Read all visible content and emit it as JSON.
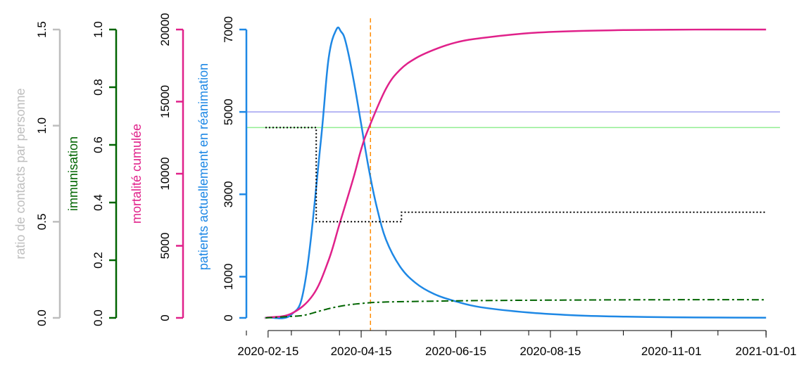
{
  "chart_data": {
    "type": "line",
    "x_axis": {
      "tick_labels": [
        "2020-02-15",
        "2020-04-15",
        "2020-06-15",
        "2020-08-15",
        "2020-11-01",
        "2021-01-01"
      ],
      "tick_dates": [
        "2020-02-15",
        "2020-04-15",
        "2020-06-15",
        "2020-08-15",
        "2020-11-01",
        "2021-01-01"
      ],
      "range": [
        "2020-02-01",
        "2021-01-10"
      ]
    },
    "y_axes": [
      {
        "label": "ratio de contacts par personne",
        "color": "#bebebe",
        "range": [
          0,
          1.5
        ],
        "tick_labels": [
          "0.0",
          "0.5",
          "1.0",
          "1.5"
        ]
      },
      {
        "label": "immunisation",
        "color": "#006400",
        "range": [
          0,
          1.0
        ],
        "tick_labels": [
          "0.0",
          "0.2",
          "0.4",
          "0.6",
          "0.8",
          "1.0"
        ]
      },
      {
        "label": "mortalité cumulée",
        "color": "#e0218a",
        "range": [
          0,
          20000
        ],
        "tick_labels": [
          "0",
          "5000",
          "10000",
          "15000",
          "20000"
        ]
      },
      {
        "label": "patients actuellement en réanimation",
        "color": "#1e88e5",
        "range": [
          0,
          7000
        ],
        "tick_labels": [
          "0",
          "1000",
          "3000",
          "5000",
          "7000"
        ]
      }
    ],
    "series": [
      {
        "axis": 3,
        "color": "#1e88e5",
        "style": "solid",
        "x": [
          "2020-02-01",
          "2020-02-15",
          "2020-03-01",
          "2020-03-10",
          "2020-03-20",
          "2020-03-25",
          "2020-03-30",
          "2020-04-02",
          "2020-04-05",
          "2020-04-10",
          "2020-04-15",
          "2020-04-20",
          "2020-04-25",
          "2020-05-01",
          "2020-05-10",
          "2020-05-20",
          "2020-06-01",
          "2020-06-15",
          "2020-07-01",
          "2020-08-01",
          "2020-09-01",
          "2020-10-01",
          "2020-11-01",
          "2020-12-01",
          "2021-01-01"
        ],
        "y": [
          0,
          10,
          80,
          900,
          4300,
          6300,
          7000,
          6950,
          6700,
          5800,
          4700,
          3600,
          2700,
          1900,
          1250,
          850,
          580,
          400,
          260,
          130,
          60,
          30,
          15,
          8,
          5
        ]
      },
      {
        "axis": 2,
        "color": "#e0218a",
        "style": "solid",
        "x": [
          "2020-02-01",
          "2020-02-15",
          "2020-03-01",
          "2020-03-15",
          "2020-03-25",
          "2020-04-01",
          "2020-04-10",
          "2020-04-15",
          "2020-04-20",
          "2020-05-01",
          "2020-05-10",
          "2020-05-20",
          "2020-06-01",
          "2020-06-15",
          "2020-07-01",
          "2020-08-01",
          "2020-09-01",
          "2020-10-01",
          "2020-11-01",
          "2020-12-01",
          "2021-01-01"
        ],
        "y": [
          0,
          30,
          300,
          1600,
          4000,
          6500,
          9700,
          11700,
          13200,
          15900,
          17200,
          18000,
          18600,
          19100,
          19400,
          19750,
          19900,
          19960,
          19990,
          20000,
          20000
        ]
      },
      {
        "axis": 1,
        "color": "#006400",
        "style": "dashdot",
        "x": [
          "2020-02-01",
          "2020-03-01",
          "2020-03-10",
          "2020-03-20",
          "2020-04-01",
          "2020-04-15",
          "2020-05-01",
          "2020-06-01",
          "2020-07-01",
          "2020-09-01",
          "2020-11-01",
          "2021-01-01"
        ],
        "y": [
          0,
          0.005,
          0.01,
          0.025,
          0.04,
          0.05,
          0.055,
          0.058,
          0.06,
          0.062,
          0.063,
          0.063
        ]
      },
      {
        "axis": 0,
        "color": "#000000",
        "style": "dotted",
        "step": true,
        "x": [
          "2020-02-01",
          "2020-03-17",
          "2020-03-17",
          "2020-05-11",
          "2020-05-11",
          "2021-01-01"
        ],
        "y": [
          0.99,
          0.99,
          0.5,
          0.5,
          0.55,
          0.55
        ]
      }
    ],
    "hlines": [
      {
        "axis": 3,
        "value": 5000,
        "color": "#9f9ff0"
      },
      {
        "axis": 0,
        "value": 0.99,
        "color": "#90ee90"
      }
    ],
    "vlines": [
      {
        "date": "2020-04-21",
        "color": "#ff8c00",
        "style": "dashed"
      }
    ]
  }
}
